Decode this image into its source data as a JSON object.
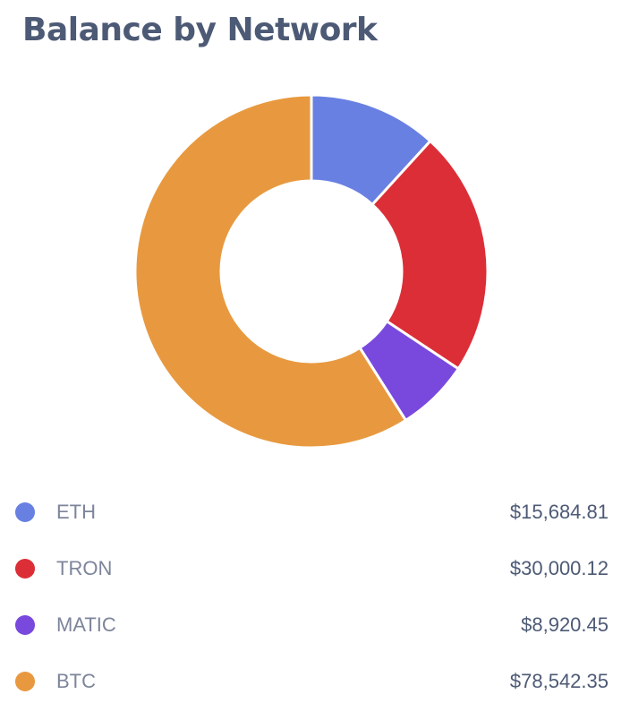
{
  "chart_data": {
    "type": "pie",
    "title": "Balance by Network",
    "categories": [
      "ETH",
      "TRON",
      "MATIC",
      "BTC"
    ],
    "values": [
      15684.81,
      30000.12,
      8920.45,
      78542.35
    ],
    "value_labels": [
      "$15,684.81",
      "$30,000.12",
      "$8,920.45",
      "$78,542.35"
    ],
    "colors": [
      "#6880e2",
      "#dc2e37",
      "#7949de",
      "#e8993f"
    ],
    "donut": true,
    "legend": "bottom"
  }
}
